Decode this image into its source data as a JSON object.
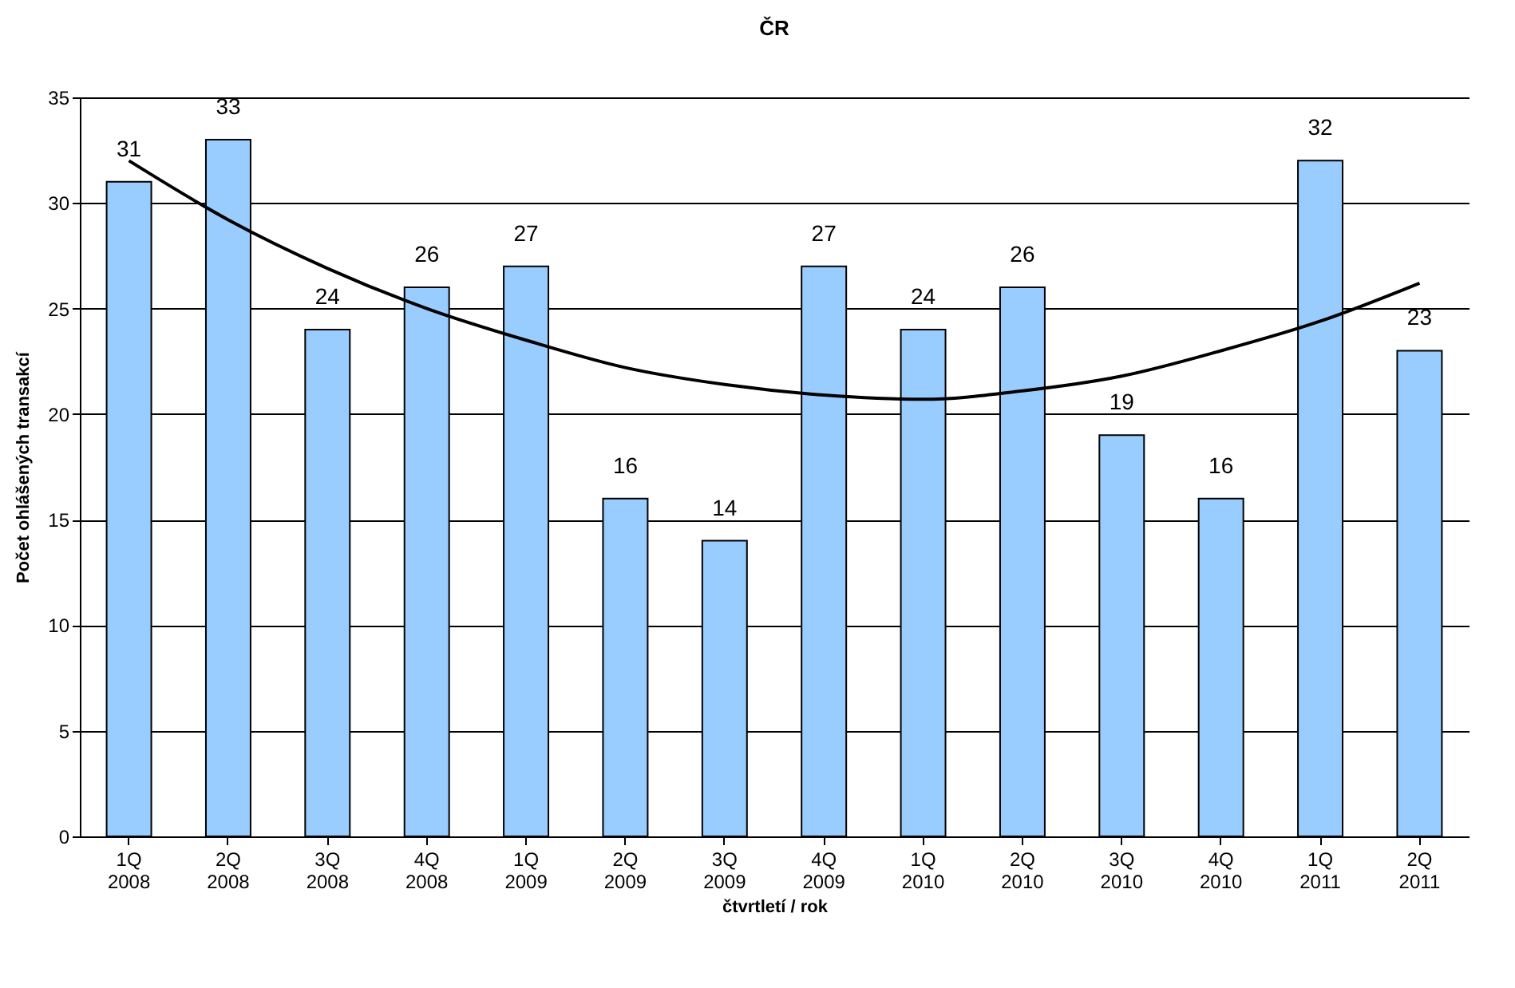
{
  "chart_data": {
    "type": "bar",
    "title": "ČR",
    "xlabel": "čtvrtletí / rok",
    "ylabel": "Počet ohlášených transakcí",
    "categories": [
      "1Q\n2008",
      "2Q\n2008",
      "3Q\n2008",
      "4Q\n2008",
      "1Q\n2009",
      "2Q\n2009",
      "3Q\n2009",
      "4Q\n2009",
      "1Q\n2010",
      "2Q\n2010",
      "3Q\n2010",
      "4Q\n2010",
      "1Q\n2011",
      "2Q\n2011"
    ],
    "series": [
      {
        "color": "#99ccff",
        "values": [
          31,
          33,
          24,
          26,
          27,
          16,
          14,
          27,
          24,
          26,
          19,
          16,
          32,
          23
        ],
        "data_labels": true
      },
      {
        "type": "line",
        "color": "#000000",
        "values": [
          32,
          29.2,
          26.9,
          25,
          23.5,
          22.2,
          21.4,
          20.9,
          20.7,
          21.1,
          21.8,
          23,
          24.4,
          26.2
        ],
        "marker": "none",
        "line_style": "solid"
      }
    ],
    "ylim": [
      0,
      35
    ],
    "yticks": [
      0,
      5,
      10,
      15,
      20,
      25,
      30,
      35
    ],
    "grid": "y"
  }
}
